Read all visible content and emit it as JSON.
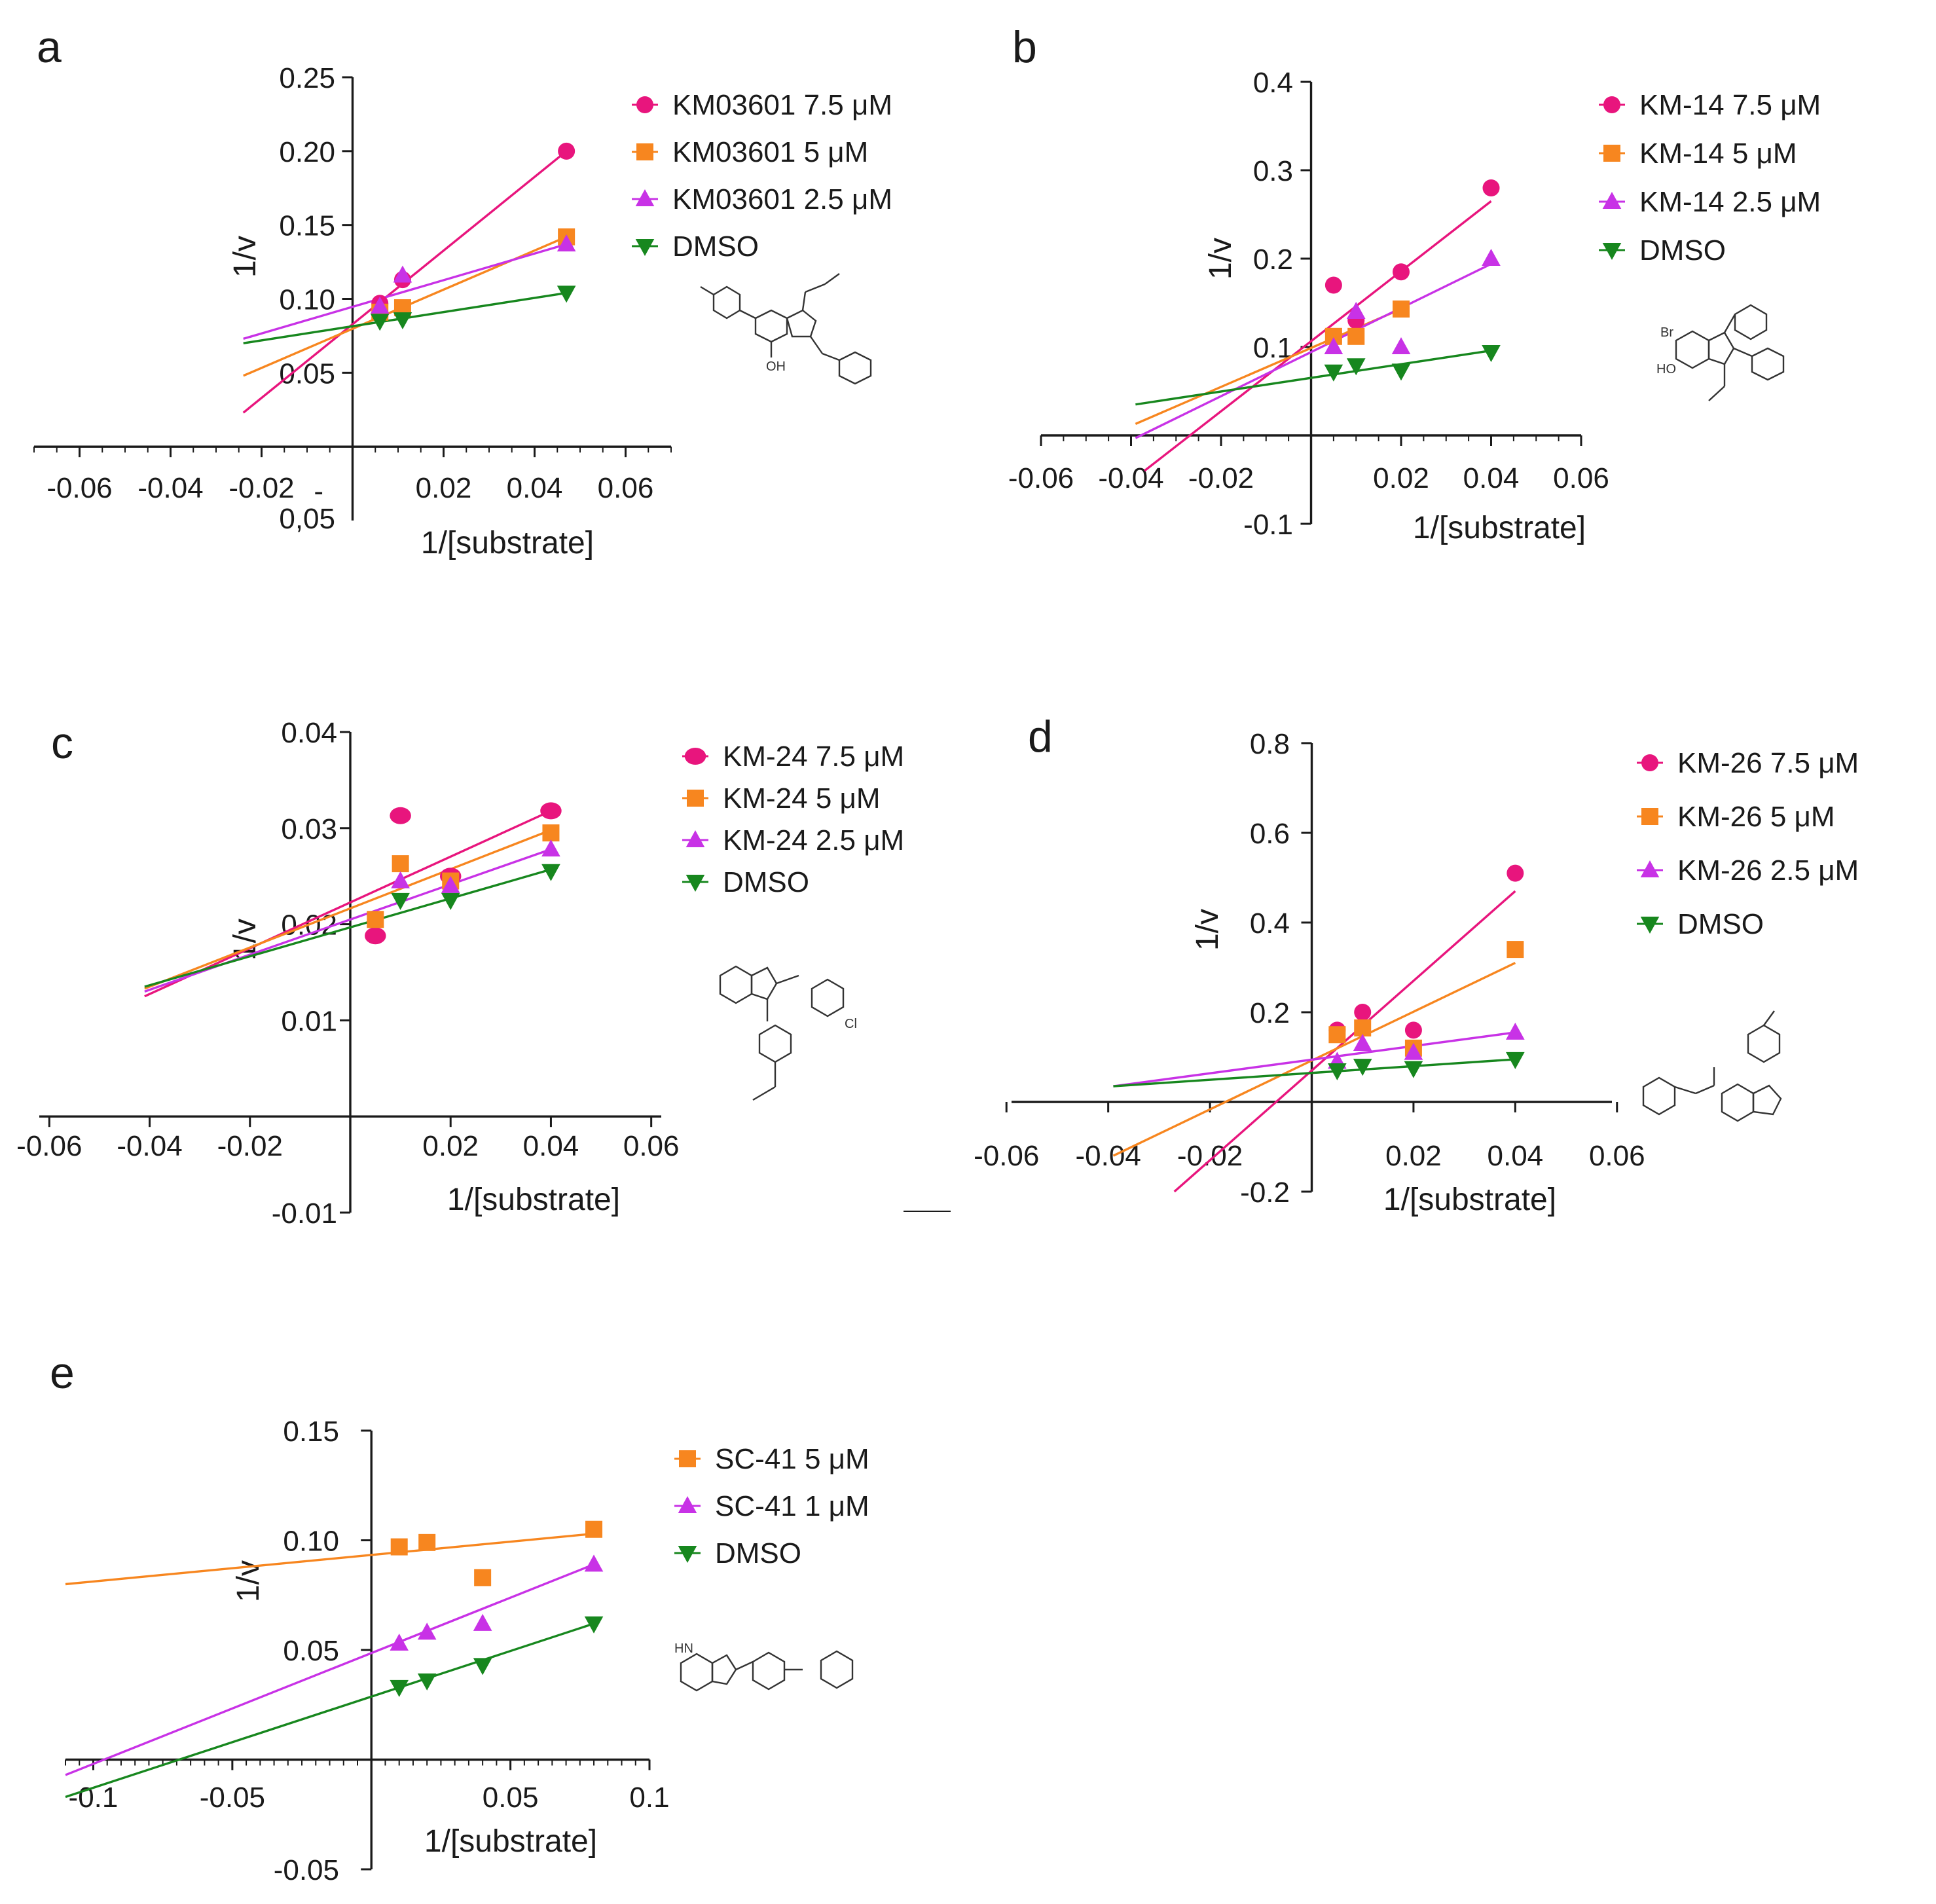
{
  "colors": {
    "pink": "#e8157d",
    "orange": "#f7861f",
    "magenta": "#c832e6",
    "green": "#17871e",
    "axis": "#1a1a1a"
  },
  "chart_data": [
    {
      "panel": "a",
      "type": "scatter",
      "xlabel": "1/[substrate]",
      "ylabel": "1/v",
      "xlim": [
        -0.07,
        0.07
      ],
      "ylim": [
        -0.05,
        0.25
      ],
      "x_ticks": [
        -0.06,
        -0.04,
        -0.02,
        0.02,
        0.04,
        0.06
      ],
      "x_tick_labels": [
        "-0.06",
        "-0.04",
        "-0.02",
        "0.02",
        "0.04",
        "0.06"
      ],
      "y_ticks": [
        0.05,
        0.1,
        0.15,
        0.2,
        0.25
      ],
      "y_tick_labels": [
        "0.05",
        "0.10",
        "0.15",
        "0.20",
        "0.25"
      ],
      "y_bottom_label": "0,05",
      "y_bottom_dash": "-",
      "legend_position": "top-right",
      "compound": "KM03601",
      "series": [
        {
          "name": "KM03601 7.5 μM",
          "color": "pink",
          "marker": "circle",
          "x": [
            0.006,
            0.011,
            0.047
          ],
          "y": [
            0.097,
            0.113,
            0.2
          ],
          "fit": [
            [
              -0.024,
              0.023
            ],
            [
              0.047,
              0.2
            ]
          ]
        },
        {
          "name": "KM03601 5 μM",
          "color": "orange",
          "marker": "square",
          "x": [
            0.006,
            0.011,
            0.047
          ],
          "y": [
            0.091,
            0.094,
            0.142
          ],
          "fit": [
            [
              -0.024,
              0.048
            ],
            [
              0.047,
              0.142
            ]
          ]
        },
        {
          "name": "KM03601 2.5 μM",
          "color": "magenta",
          "marker": "triangle-up",
          "x": [
            0.006,
            0.011,
            0.047
          ],
          "y": [
            0.095,
            0.116,
            0.137
          ],
          "fit": [
            [
              -0.024,
              0.073
            ],
            [
              0.047,
              0.137
            ]
          ]
        },
        {
          "name": "DMSO",
          "color": "green",
          "marker": "triangle-down",
          "x": [
            0.006,
            0.011,
            0.047
          ],
          "y": [
            0.085,
            0.086,
            0.104
          ],
          "fit": [
            [
              -0.024,
              0.07
            ],
            [
              0.047,
              0.104
            ]
          ]
        }
      ]
    },
    {
      "panel": "b",
      "type": "scatter",
      "xlabel": "1/[substrate]",
      "ylabel": "1/v",
      "xlim": [
        -0.06,
        0.06
      ],
      "ylim": [
        -0.1,
        0.4
      ],
      "x_ticks": [
        -0.06,
        -0.04,
        -0.02,
        0.02,
        0.04,
        0.06
      ],
      "x_tick_labels": [
        "-0.06",
        "-0.04",
        "-0.02",
        "0.02",
        "0.04",
        "0.06"
      ],
      "y_ticks": [
        -0.1,
        0.1,
        0.2,
        0.3,
        0.4
      ],
      "y_tick_labels": [
        "-0.1",
        "0.1",
        "0.2",
        "0.3",
        "0.4"
      ],
      "legend_position": "top-right",
      "compound": "KM-14",
      "series": [
        {
          "name": "KM-14 7.5 μM",
          "color": "pink",
          "marker": "circle",
          "x": [
            0.005,
            0.01,
            0.02,
            0.04
          ],
          "y": [
            0.17,
            0.13,
            0.185,
            0.28
          ],
          "fit": [
            [
              -0.037,
              -0.04
            ],
            [
              0.04,
              0.265
            ]
          ]
        },
        {
          "name": "KM-14 5 μM",
          "color": "orange",
          "marker": "square",
          "x": [
            0.005,
            0.01,
            0.02
          ],
          "y": [
            0.112,
            0.112,
            0.143
          ],
          "fit": [
            [
              -0.039,
              0.013
            ],
            [
              0.02,
              0.143
            ]
          ]
        },
        {
          "name": "KM-14 2.5 μM",
          "color": "magenta",
          "marker": "triangle-up",
          "x": [
            0.005,
            0.01,
            0.02,
            0.04
          ],
          "y": [
            0.1,
            0.14,
            0.1,
            0.2
          ],
          "fit": [
            [
              -0.039,
              -0.003
            ],
            [
              0.04,
              0.194
            ]
          ]
        },
        {
          "name": "DMSO",
          "color": "green",
          "marker": "triangle-down",
          "x": [
            0.005,
            0.01,
            0.02,
            0.04
          ],
          "y": [
            0.072,
            0.079,
            0.073,
            0.094
          ],
          "fit": [
            [
              -0.039,
              0.035
            ],
            [
              0.04,
              0.096
            ]
          ]
        }
      ]
    },
    {
      "panel": "c",
      "type": "scatter",
      "xlabel": "1/[substrate]",
      "ylabel": "1/v",
      "xlim": [
        -0.062,
        0.062
      ],
      "ylim": [
        -0.01,
        0.04
      ],
      "x_ticks": [
        -0.06,
        -0.04,
        -0.02,
        0.02,
        0.04,
        0.06
      ],
      "x_tick_labels": [
        "-0.06",
        "-0.04",
        "-0.02",
        "0.02",
        "0.04",
        "0.06"
      ],
      "y_ticks": [
        -0.01,
        0.01,
        0.02,
        0.03,
        0.04
      ],
      "y_tick_labels": [
        "-0.01",
        "0.01",
        "0.02",
        "0.03",
        "0.04"
      ],
      "legend_position": "top-right",
      "compound": "KM-24",
      "series": [
        {
          "name": "KM-24 7.5 μM",
          "color": "pink",
          "marker": "ellipse",
          "x": [
            0.005,
            0.01,
            0.02,
            0.04
          ],
          "y": [
            0.0188,
            0.0313,
            0.025,
            0.0318
          ],
          "fit": [
            [
              -0.041,
              0.0125
            ],
            [
              0.04,
              0.0318
            ]
          ]
        },
        {
          "name": "KM-24 5 μM",
          "color": "orange",
          "marker": "square",
          "x": [
            0.005,
            0.01,
            0.02,
            0.04
          ],
          "y": [
            0.0205,
            0.0263,
            0.0245,
            0.0295
          ],
          "fit": [
            [
              -0.041,
              0.0133
            ],
            [
              0.04,
              0.0298
            ]
          ]
        },
        {
          "name": "KM-24 2.5 μM",
          "color": "magenta",
          "marker": "triangle-up",
          "x": [
            0.01,
            0.02,
            0.04
          ],
          "y": [
            0.0245,
            0.024,
            0.0278
          ],
          "fit": [
            [
              -0.041,
              0.013
            ],
            [
              0.04,
              0.0278
            ]
          ]
        },
        {
          "name": "DMSO",
          "color": "green",
          "marker": "triangle-down",
          "x": [
            0.01,
            0.02,
            0.04
          ],
          "y": [
            0.0225,
            0.0225,
            0.0255
          ],
          "fit": [
            [
              -0.041,
              0.0135
            ],
            [
              0.04,
              0.0257
            ]
          ]
        }
      ]
    },
    {
      "panel": "d",
      "type": "scatter",
      "xlabel": "1/[substrate]",
      "ylabel": "1/v",
      "xlim": [
        -0.059,
        0.059
      ],
      "ylim": [
        -0.2,
        0.8
      ],
      "x_ticks": [
        -0.06,
        -0.04,
        -0.02,
        0.02,
        0.04,
        0.06
      ],
      "x_tick_labels": [
        "-0.06",
        "-0.04",
        "-0.02",
        "0.02",
        "0.04",
        "0.06"
      ],
      "y_ticks": [
        -0.2,
        0.2,
        0.4,
        0.6,
        0.8
      ],
      "y_tick_labels": [
        "-0.2",
        "0.2",
        "0.4",
        "0.6",
        "0.8"
      ],
      "legend_position": "top-right",
      "compound": "KM-26",
      "series": [
        {
          "name": "KM-26 7.5 μM",
          "color": "pink",
          "marker": "circle",
          "x": [
            0.005,
            0.01,
            0.02,
            0.04
          ],
          "y": [
            0.16,
            0.2,
            0.16,
            0.51
          ],
          "fit": [
            [
              -0.027,
              -0.2
            ],
            [
              0.04,
              0.47
            ]
          ]
        },
        {
          "name": "KM-26 5 μM",
          "color": "orange",
          "marker": "square",
          "x": [
            0.005,
            0.01,
            0.02,
            0.04
          ],
          "y": [
            0.15,
            0.165,
            0.12,
            0.34
          ],
          "fit": [
            [
              -0.039,
              -0.12
            ],
            [
              0.04,
              0.31
            ]
          ]
        },
        {
          "name": "KM-26 2.5 μM",
          "color": "magenta",
          "marker": "triangle-up",
          "x": [
            0.005,
            0.01,
            0.02,
            0.04
          ],
          "y": [
            0.09,
            0.13,
            0.11,
            0.155
          ],
          "fit": [
            [
              -0.039,
              0.035
            ],
            [
              0.04,
              0.155
            ]
          ]
        },
        {
          "name": "DMSO",
          "color": "green",
          "marker": "triangle-down",
          "x": [
            0.005,
            0.01,
            0.02,
            0.04
          ],
          "y": [
            0.07,
            0.08,
            0.075,
            0.095
          ],
          "fit": [
            [
              -0.039,
              0.035
            ],
            [
              0.04,
              0.095
            ]
          ]
        }
      ]
    },
    {
      "panel": "e",
      "type": "scatter",
      "xlabel": "1/[substrate]",
      "ylabel": "1/v",
      "xlim": [
        -0.11,
        0.1
      ],
      "ylim": [
        -0.05,
        0.15
      ],
      "x_ticks": [
        -0.1,
        -0.05,
        0.05,
        0.1
      ],
      "x_tick_labels": [
        "-0.1",
        "-0.05",
        "0.05",
        "0.1"
      ],
      "y_ticks": [
        -0.05,
        0.05,
        0.1,
        0.15
      ],
      "y_tick_labels": [
        "-0.05",
        "0.05",
        "0.10",
        "0.15"
      ],
      "legend_position": "top-right",
      "compound": "SC-41",
      "series": [
        {
          "name": "SC-41 5 μM",
          "color": "orange",
          "marker": "square",
          "x": [
            0.01,
            0.02,
            0.04,
            0.08
          ],
          "y": [
            0.097,
            0.099,
            0.083,
            0.105
          ],
          "fit": [
            [
              -0.11,
              0.08
            ],
            [
              0.08,
              0.103
            ]
          ]
        },
        {
          "name": "SC-41 1 μM",
          "color": "magenta",
          "marker": "triangle-up",
          "x": [
            0.01,
            0.02,
            0.04,
            0.08
          ],
          "y": [
            0.053,
            0.058,
            0.062,
            0.089
          ],
          "fit": [
            [
              -0.11,
              -0.007
            ],
            [
              0.08,
              0.089
            ]
          ]
        },
        {
          "name": "DMSO",
          "color": "green",
          "marker": "triangle-down",
          "x": [
            0.01,
            0.02,
            0.04,
            0.08
          ],
          "y": [
            0.033,
            0.036,
            0.043,
            0.062
          ],
          "fit": [
            [
              -0.11,
              -0.017
            ],
            [
              0.08,
              0.062
            ]
          ]
        }
      ]
    }
  ]
}
